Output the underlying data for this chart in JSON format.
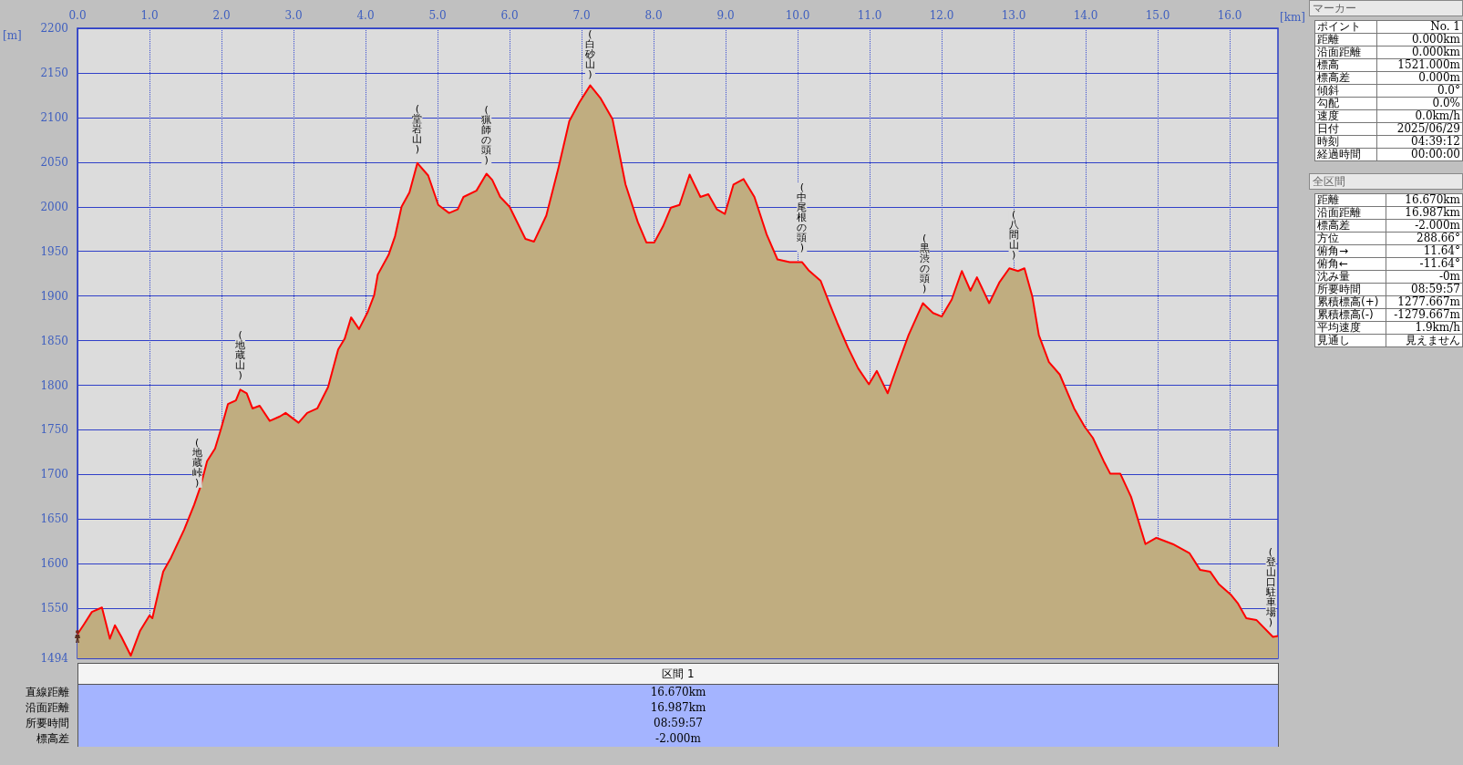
{
  "chart_data": [
    {
      "type": "area",
      "xlabel": "[km]",
      "ylabel": "[m]",
      "grid": true,
      "marker": "none",
      "xlim": [
        0,
        16.67
      ],
      "xticks": [
        {
          "value": 0,
          "label": "0.0"
        },
        {
          "value": 1,
          "label": "1.0"
        },
        {
          "value": 2,
          "label": "2.0"
        },
        {
          "value": 3,
          "label": "3.0"
        },
        {
          "value": 4,
          "label": "4.0"
        },
        {
          "value": 5,
          "label": "5.0"
        },
        {
          "value": 6,
          "label": "6.0"
        },
        {
          "value": 7,
          "label": "7.0"
        },
        {
          "value": 8,
          "label": "8.0"
        },
        {
          "value": 9,
          "label": "9.0"
        },
        {
          "value": 10,
          "label": "10.0"
        },
        {
          "value": 11,
          "label": "11.0"
        },
        {
          "value": 12,
          "label": "12.0"
        },
        {
          "value": 13,
          "label": "13.0"
        },
        {
          "value": 14,
          "label": "14.0"
        },
        {
          "value": 15,
          "label": "15.0"
        },
        {
          "value": 16,
          "label": "16.0"
        }
      ],
      "ylim": [
        1494,
        2200
      ],
      "yticks": [
        1494,
        1550,
        1600,
        1650,
        1700,
        1750,
        1800,
        1850,
        1900,
        1950,
        2000,
        2050,
        2100,
        2150,
        2200
      ],
      "x": [
        0,
        0.09,
        0.2,
        0.34,
        0.45,
        0.52,
        0.61,
        0.74,
        0.87,
        1.0,
        1.04,
        1.19,
        1.3,
        1.48,
        1.62,
        1.71,
        1.8,
        1.91,
        2.0,
        2.09,
        2.2,
        2.26,
        2.35,
        2.43,
        2.53,
        2.67,
        2.81,
        2.89,
        3.07,
        3.19,
        3.33,
        3.48,
        3.62,
        3.71,
        3.8,
        3.91,
        4.03,
        4.12,
        4.17,
        4.32,
        4.41,
        4.5,
        4.61,
        4.72,
        4.87,
        5.01,
        5.16,
        5.28,
        5.36,
        5.54,
        5.68,
        5.76,
        5.87,
        6.0,
        6.22,
        6.34,
        6.51,
        6.68,
        6.83,
        6.97,
        7.12,
        7.26,
        7.43,
        7.61,
        7.78,
        7.9,
        8.01,
        8.13,
        8.24,
        8.36,
        8.5,
        8.65,
        8.76,
        8.88,
        8.99,
        9.11,
        9.25,
        9.4,
        9.57,
        9.72,
        9.89,
        10.06,
        10.15,
        10.32,
        10.44,
        10.55,
        10.7,
        10.84,
        10.99,
        11.1,
        11.25,
        11.39,
        11.54,
        11.74,
        11.88,
        12.0,
        12.14,
        12.28,
        12.4,
        12.49,
        12.66,
        12.8,
        12.94,
        13.06,
        13.15,
        13.26,
        13.35,
        13.49,
        13.64,
        13.84,
        13.99,
        14.1,
        14.25,
        14.34,
        14.48,
        14.63,
        14.83,
        14.98,
        15.21,
        15.44,
        15.59,
        15.73,
        15.85,
        16.02,
        16.11,
        16.23,
        16.37,
        16.6,
        16.67
      ],
      "series": [
        {
          "type": "area",
          "color": "#c0ad80",
          "values": [
            1521,
            1532,
            1546,
            1551,
            1516,
            1531,
            1518,
            1497,
            1525,
            1542,
            1539,
            1591,
            1607,
            1638,
            1666,
            1687,
            1715,
            1729,
            1753,
            1779,
            1783,
            1795,
            1791,
            1774,
            1777,
            1760,
            1765,
            1769,
            1758,
            1769,
            1774,
            1798,
            1840,
            1852,
            1876,
            1863,
            1882,
            1901,
            1924,
            1946,
            1967,
            2000,
            2016,
            2049,
            2035,
            2002,
            1993,
            1997,
            2011,
            2018,
            2037,
            2030,
            2011,
            2000,
            1964,
            1961,
            1990,
            2044,
            2096,
            2117,
            2136,
            2122,
            2098,
            2025,
            1983,
            1960,
            1960,
            1978,
            1999,
            2002,
            2036,
            2011,
            2014,
            1997,
            1992,
            2025,
            2031,
            2011,
            1969,
            1941,
            1938,
            1938,
            1929,
            1917,
            1892,
            1870,
            1842,
            1819,
            1801,
            1816,
            1791,
            1823,
            1856,
            1892,
            1881,
            1877,
            1896,
            1928,
            1906,
            1921,
            1892,
            1915,
            1931,
            1928,
            1931,
            1899,
            1856,
            1826,
            1812,
            1774,
            1753,
            1741,
            1715,
            1701,
            1701,
            1675,
            1622,
            1629,
            1622,
            1612,
            1593,
            1591,
            1577,
            1565,
            1556,
            1539,
            1537,
            1518,
            1519
          ]
        }
      ],
      "annotations": [
        {
          "text": "(地蔵峠)",
          "x": 1.66,
          "y": 1675
        },
        {
          "text": "(地蔵山)",
          "x": 2.26,
          "y": 1795
        },
        {
          "text": "(堂岩山)",
          "x": 4.72,
          "y": 2049
        },
        {
          "text": "(猟師の頭)",
          "x": 5.68,
          "y": 2037
        },
        {
          "text": "(白砂山)",
          "x": 7.12,
          "y": 2136
        },
        {
          "text": "(中尾根の頭)",
          "x": 10.06,
          "y": 1938
        },
        {
          "text": "(黒渋の頭)",
          "x": 11.76,
          "y": 1892
        },
        {
          "text": "(八間山)",
          "x": 13.0,
          "y": 1930
        },
        {
          "text": "(登山口駐車場)",
          "x": 16.67,
          "y": 1519
        }
      ]
    },
    {
      "type": "other",
      "title": "マーカー",
      "categories": [
        "ポイント",
        "距離",
        "沿面距離",
        "標高",
        "標高差",
        "傾斜",
        "勾配",
        "速度",
        "日付",
        "時刻",
        "経過時間"
      ],
      "value_labels": [
        "No. 1",
        "0.000km",
        "0.000km",
        "1521.000m",
        "0.000m",
        "0.0°",
        "0.0%",
        "0.0km/h",
        "2025/06/29",
        "04:39:12",
        "00:00:00"
      ]
    },
    {
      "type": "other",
      "title": "全区間",
      "categories": [
        "距離",
        "沿面距離",
        "標高差",
        "方位",
        "俯角→",
        "俯角←",
        "沈み量",
        "所要時間",
        "累積標高(+)",
        "累積標高(-)",
        "平均速度",
        "見通し"
      ],
      "value_labels": [
        "16.670km",
        "16.987km",
        "-2.000m",
        "288.66°",
        "11.64°",
        "-11.64°",
        "-0m",
        "08:59:57",
        "1277.667m",
        "-1279.667m",
        "1.9km/h",
        "見えません"
      ]
    },
    {
      "type": "other",
      "title": "区間 1",
      "categories": [
        "直線距離",
        "沿面距離",
        "所要時間",
        "標高差"
      ],
      "value_labels": [
        "16.670km",
        "16.987km",
        "08:59:57",
        "-2.000m"
      ]
    }
  ]
}
